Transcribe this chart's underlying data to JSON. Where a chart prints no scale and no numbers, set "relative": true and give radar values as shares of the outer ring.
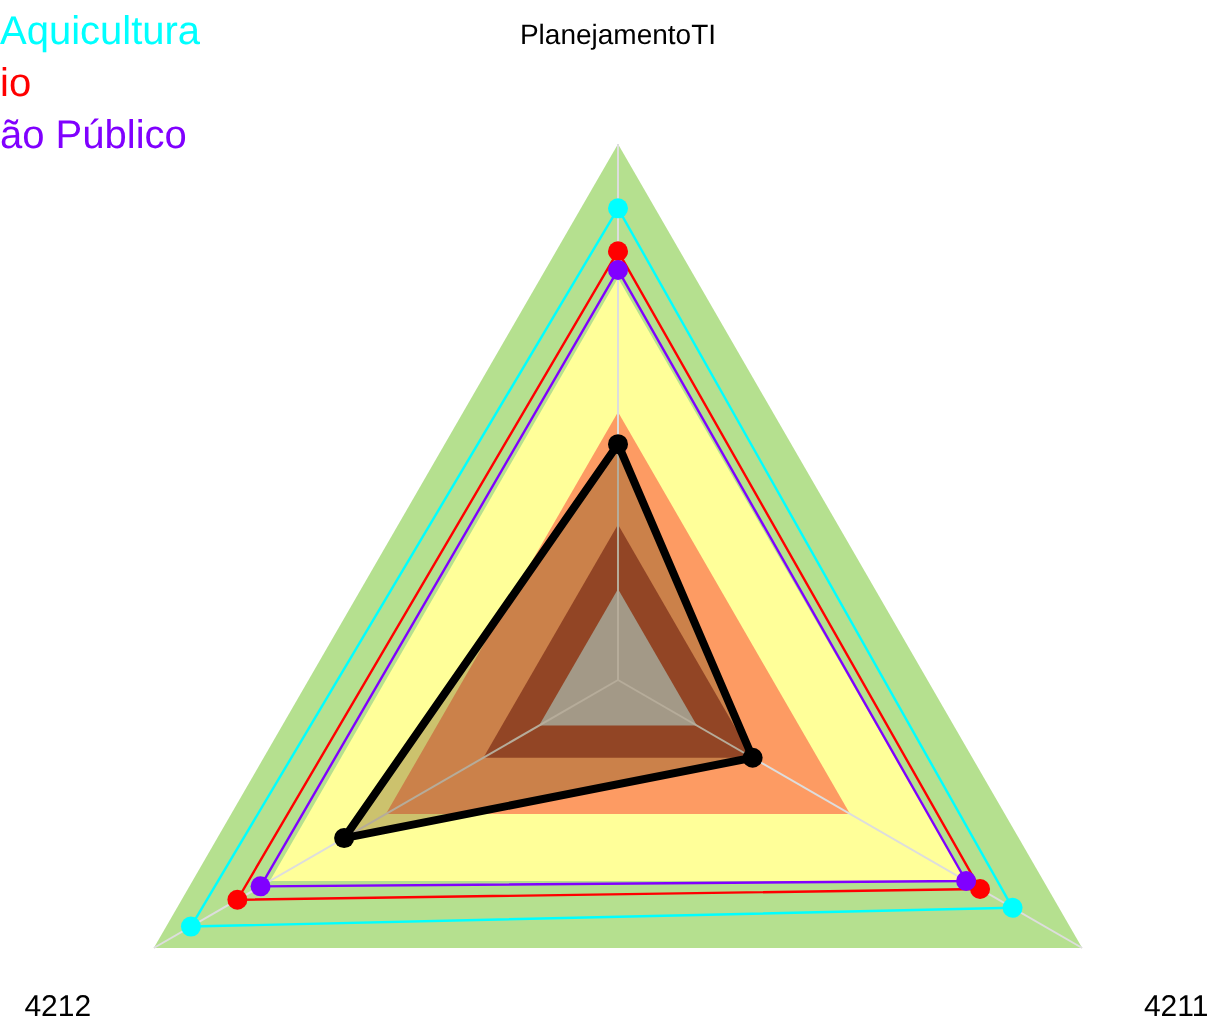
{
  "chart_data": {
    "type": "radar",
    "relative": true,
    "categories": [
      "PlanejamentoTI",
      "4211",
      "4212"
    ],
    "legend": "top left",
    "marker": "circle",
    "series": [
      {
        "name": "Aquicultura",
        "color": "#00ffff",
        "values": [
          0.88,
          0.85,
          0.92
        ]
      },
      {
        "name": "io",
        "color": "#ff0000",
        "values": [
          0.8,
          0.78,
          0.82
        ]
      },
      {
        "name": "ão Público",
        "color": "#8000ff",
        "values": [
          0.765,
          0.75,
          0.77
        ]
      },
      {
        "color": "#000000",
        "values": [
          0.44,
          0.29,
          0.59
        ]
      }
    ]
  }
}
